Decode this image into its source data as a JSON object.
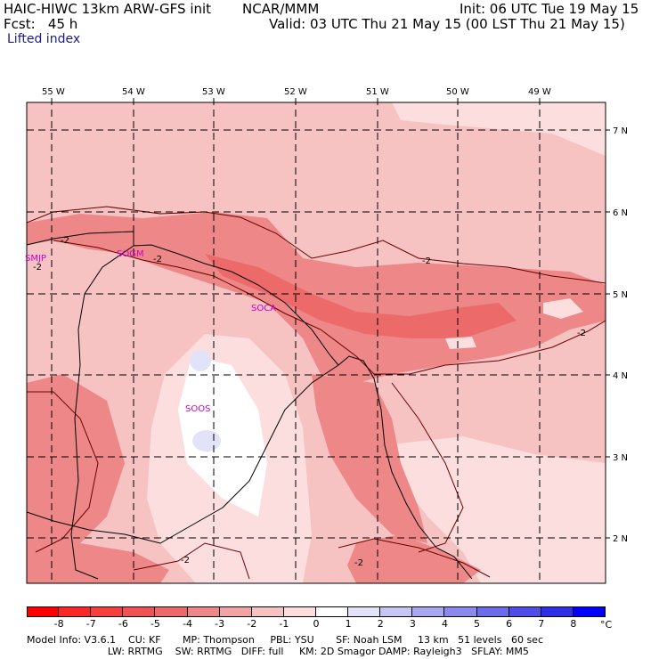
{
  "header": {
    "model": "HAIC-HIWC 13km ARW-GFS init",
    "org": "NCAR/MMM",
    "init": "Init: 06 UTC Tue 19 May 15",
    "fcst": "Fcst:   45 h",
    "valid": "Valid: 03 UTC Thu 21 May 15 (00 LST Thu 21 May 15)",
    "field": "Lifted index"
  },
  "map": {
    "lon_labels": [
      "55 W",
      "54 W",
      "53 W",
      "52 W",
      "51 W",
      "50 W",
      "49 W"
    ],
    "lat_labels": [
      "7 N",
      "6 N",
      "5 N",
      "4 N",
      "3 N",
      "2 N"
    ],
    "stations": [
      "SMJP",
      "SOCA",
      "SOGM",
      "SOOS"
    ],
    "contour_labels": [
      "-2",
      "-2",
      "-2",
      "-2",
      "-2",
      "-2",
      "-2"
    ],
    "colors": {
      "background": "#f4c8c8",
      "coast": "#000000",
      "contour": "#6a0000",
      "grid": "#000000",
      "station": "#cc00cc"
    }
  },
  "colorbar": {
    "ticks": [
      "-8",
      "-7",
      "-6",
      "-5",
      "-4",
      "-3",
      "-2",
      "-1",
      "0",
      "1",
      "2",
      "3",
      "4",
      "5",
      "6",
      "7",
      "8"
    ],
    "unit": "°C",
    "colors": [
      "#ff0000",
      "#fb2626",
      "#f53e3e",
      "#ef5454",
      "#ec6a6a",
      "#ee8787",
      "#f2a4a4",
      "#f6c2c2",
      "#fcdede",
      "#ffffff",
      "#e2e2f8",
      "#c6c6f4",
      "#a8a8f0",
      "#8a8aec",
      "#6c6ce8",
      "#4e4ee6",
      "#2e2ee6",
      "#0000ff"
    ]
  },
  "footer": {
    "line1": "Model Info: V3.6.1    CU: KF       MP: Thompson     PBL: YSU       SF: Noah LSM     13 km   51 levels   60 sec",
    "line2": "                          LW: RRTMG    SW: RRTMG   DIFF: full     KM: 2D Smagor DAMP: Rayleigh3   SFLAY: MM5"
  }
}
